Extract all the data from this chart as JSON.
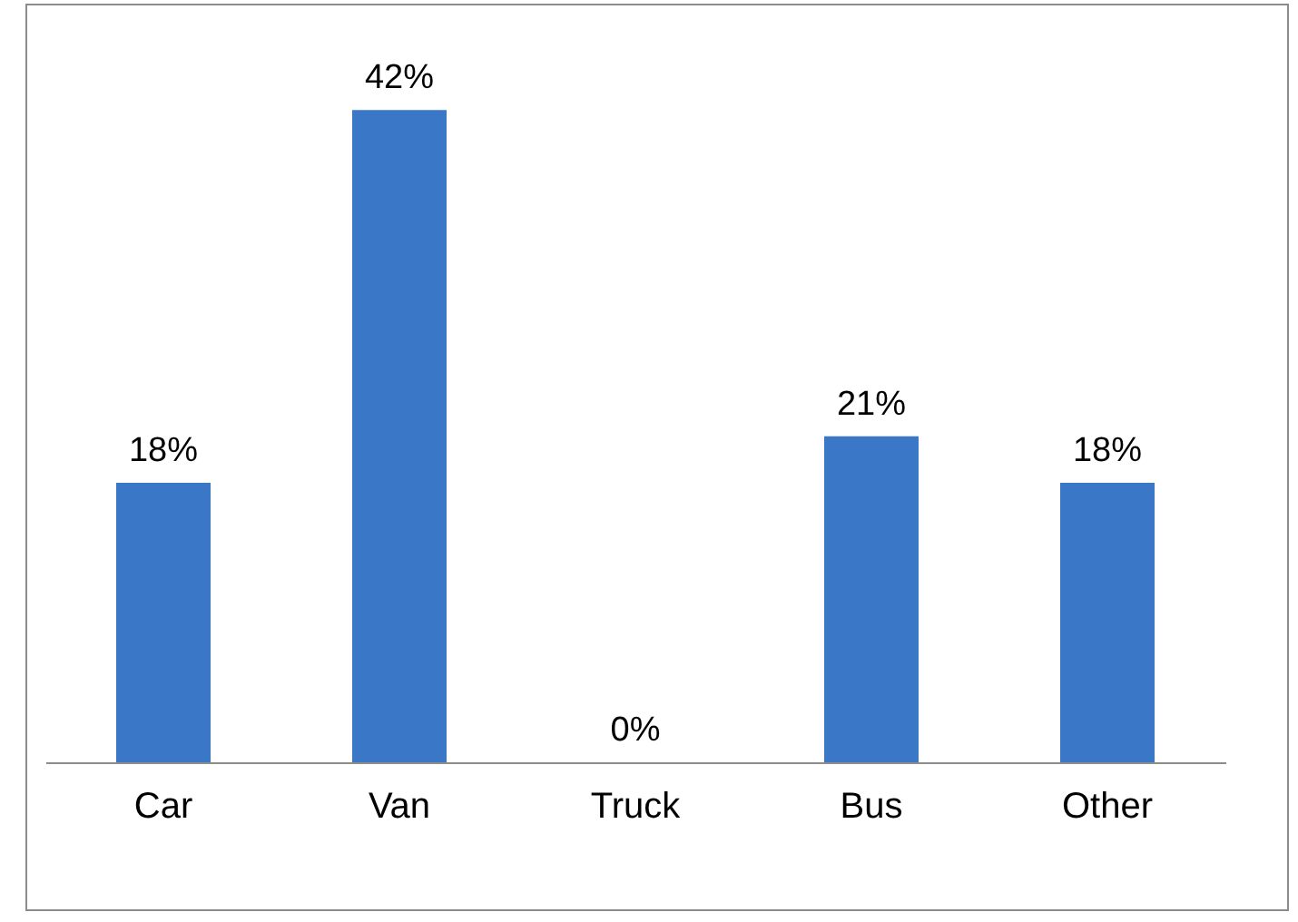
{
  "chart_data": {
    "type": "bar",
    "categories": [
      "Car",
      "Van",
      "Truck",
      "Bus",
      "Other"
    ],
    "values": [
      18,
      42,
      0,
      21,
      18
    ],
    "value_labels": [
      "18%",
      "42%",
      "0%",
      "21%",
      "18%"
    ],
    "color": "#3a77c7",
    "grid": false
  }
}
